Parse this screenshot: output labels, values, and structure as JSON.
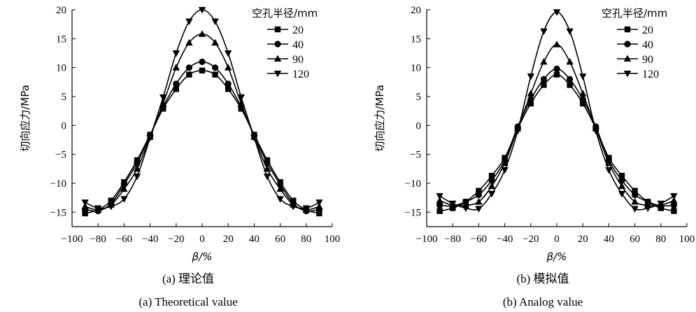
{
  "chart_data": [
    {
      "type": "line",
      "title": "",
      "xlabel": "β/%",
      "ylabel": "切向应力/MPa",
      "xlim": [
        -100,
        100
      ],
      "ylim": [
        -17.5,
        20
      ],
      "xticks": [
        -100,
        -80,
        -60,
        -40,
        -20,
        0,
        20,
        40,
        60,
        80,
        100
      ],
      "xtick_labels": [
        "−100",
        "−80",
        "−60",
        "−40",
        "−20",
        "0",
        "20",
        "40",
        "60",
        "80",
        "100"
      ],
      "yticks": [
        -15,
        -10,
        -5,
        0,
        5,
        10,
        15,
        20
      ],
      "ytick_labels": [
        "−15",
        "−10",
        "−5",
        "0",
        "5",
        "10",
        "15",
        "20"
      ],
      "legend_title": "空孔半径/mm",
      "legend_position": "top-right",
      "caption_cn": "(a) 理论值",
      "caption_en": "(a) Theoretical value",
      "x": [
        -90,
        -80,
        -70,
        -60,
        -50,
        -40,
        -30,
        -20,
        -10,
        0,
        10,
        20,
        30,
        40,
        50,
        60,
        70,
        80,
        90
      ],
      "series": [
        {
          "name": "20",
          "marker": "square",
          "values": [
            -15.2,
            -14.6,
            -13.0,
            -9.8,
            -6.0,
            -1.6,
            2.9,
            6.3,
            8.8,
            9.5,
            8.8,
            6.3,
            2.9,
            -1.6,
            -6.0,
            -9.8,
            -13.0,
            -14.6,
            -15.2
          ]
        },
        {
          "name": "40",
          "marker": "circle",
          "values": [
            -14.5,
            -14.8,
            -13.5,
            -10.2,
            -6.5,
            -1.8,
            3.2,
            7.2,
            10.0,
            11.0,
            10.0,
            7.2,
            3.2,
            -1.8,
            -6.5,
            -10.2,
            -13.5,
            -14.8,
            -14.5
          ]
        },
        {
          "name": "90",
          "marker": "triangle-up",
          "values": [
            -14.0,
            -14.6,
            -13.7,
            -11.0,
            -7.5,
            -2.0,
            3.8,
            10.0,
            14.3,
            15.8,
            14.3,
            10.0,
            3.8,
            -2.0,
            -7.5,
            -11.0,
            -13.7,
            -14.6,
            -14.0
          ]
        },
        {
          "name": "120",
          "marker": "triangle-down",
          "values": [
            -13.3,
            -14.3,
            -14.0,
            -12.7,
            -8.8,
            -2.1,
            4.9,
            12.5,
            18.0,
            20.0,
            18.0,
            12.5,
            4.9,
            -2.1,
            -8.8,
            -12.7,
            -14.0,
            -14.3,
            -13.3
          ]
        }
      ]
    },
    {
      "type": "line",
      "title": "",
      "xlabel": "β/%",
      "ylabel": "切向应力/MPa",
      "xlim": [
        -100,
        100
      ],
      "ylim": [
        -17.5,
        20
      ],
      "xticks": [
        -100,
        -80,
        -60,
        -40,
        -20,
        0,
        20,
        40,
        60,
        80,
        100
      ],
      "xtick_labels": [
        "−100",
        "−80",
        "−60",
        "−40",
        "−20",
        "0",
        "20",
        "40",
        "60",
        "80",
        "100"
      ],
      "yticks": [
        -15,
        -10,
        -5,
        0,
        5,
        10,
        15,
        20
      ],
      "ytick_labels": [
        "−15",
        "−10",
        "−5",
        "0",
        "5",
        "10",
        "15",
        "20"
      ],
      "legend_title": "空孔半径/mm",
      "legend_position": "top-right",
      "caption_cn": "(b) 模拟值",
      "caption_en": "(b) Analog value",
      "x": [
        -90,
        -80,
        -70,
        -60,
        -50,
        -40,
        -30,
        -20,
        -10,
        0,
        10,
        20,
        30,
        40,
        50,
        60,
        70,
        80,
        90
      ],
      "series": [
        {
          "name": "20",
          "marker": "square",
          "values": [
            -14.8,
            -14.3,
            -13.2,
            -11.3,
            -8.7,
            -5.6,
            -0.5,
            3.8,
            7.0,
            8.8,
            7.0,
            3.8,
            -0.5,
            -5.6,
            -8.7,
            -11.3,
            -13.2,
            -14.3,
            -14.8
          ]
        },
        {
          "name": "40",
          "marker": "circle",
          "values": [
            -13.8,
            -13.9,
            -13.2,
            -12.0,
            -9.5,
            -6.0,
            -0.2,
            4.5,
            8.0,
            9.8,
            8.0,
            4.5,
            -0.2,
            -6.0,
            -9.5,
            -12.0,
            -13.2,
            -13.9,
            -13.8
          ]
        },
        {
          "name": "90",
          "marker": "triangle-up",
          "values": [
            -13.0,
            -13.8,
            -13.8,
            -13.2,
            -10.5,
            -6.5,
            -0.5,
            5.5,
            11.0,
            14.0,
            11.0,
            5.5,
            -0.5,
            -6.5,
            -10.5,
            -13.2,
            -13.8,
            -13.8,
            -13.0
          ]
        },
        {
          "name": "120",
          "marker": "triangle-down",
          "values": [
            -12.2,
            -13.5,
            -14.3,
            -14.4,
            -11.8,
            -7.7,
            -0.9,
            8.5,
            16.3,
            19.6,
            16.3,
            8.5,
            -0.9,
            -7.7,
            -11.8,
            -14.4,
            -14.3,
            -13.5,
            -12.2
          ]
        }
      ]
    }
  ]
}
